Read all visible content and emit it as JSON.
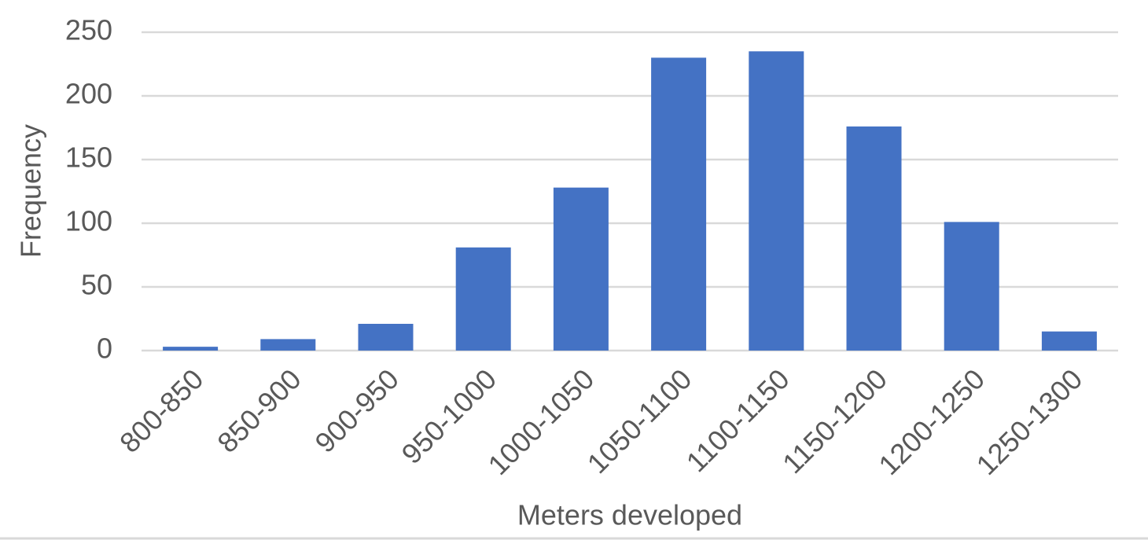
{
  "chart_data": {
    "type": "bar",
    "x_label": "Meters developed",
    "y_label": "Frequency",
    "categories": [
      "800-850",
      "850-900",
      "900-950",
      "950-1000",
      "1000-1050",
      "1050-1100",
      "1100-1150",
      "1150-1200",
      "1200-1250",
      "1250-1300"
    ],
    "values": [
      3,
      9,
      21,
      81,
      128,
      230,
      235,
      176,
      101,
      15
    ],
    "color": "#4472c4",
    "ylim": [
      0,
      250
    ],
    "yticks": [
      0,
      50,
      100,
      150,
      200,
      250
    ],
    "grid": true
  }
}
